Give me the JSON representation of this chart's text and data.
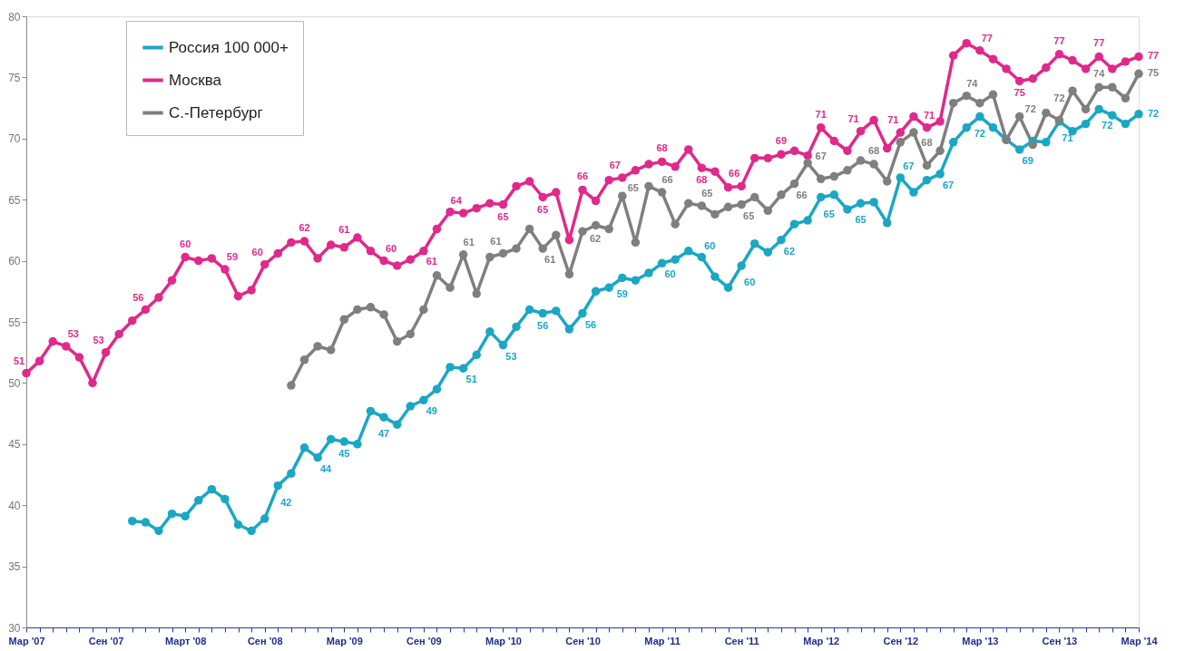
{
  "chart_data": {
    "type": "line",
    "categories": [
      "Мар '07",
      null,
      null,
      null,
      null,
      null,
      "Сен '07",
      null,
      null,
      null,
      null,
      null,
      "Март '08",
      null,
      null,
      null,
      null,
      null,
      "Сен '08",
      null,
      null,
      null,
      null,
      null,
      "Мар '09",
      null,
      null,
      null,
      null,
      null,
      "Сен '09",
      null,
      null,
      null,
      null,
      null,
      "Мар '10",
      null,
      null,
      null,
      null,
      null,
      "Сен '10",
      null,
      null,
      null,
      null,
      null,
      "Мар '11",
      null,
      null,
      null,
      null,
      null,
      "Сен '11",
      null,
      null,
      null,
      null,
      null,
      "Мар '12",
      null,
      null,
      null,
      null,
      null,
      "Сен '12",
      null,
      null,
      null,
      null,
      null,
      "Мар '13",
      null,
      null,
      null,
      null,
      null,
      "Сен '13",
      null,
      null,
      null,
      null,
      null,
      "Мар '14"
    ],
    "series": [
      {
        "name": "Россия 100 000+",
        "color": "#1aa7c4",
        "values": [
          null,
          null,
          null,
          null,
          null,
          null,
          null,
          null,
          38.7,
          38.6,
          37.9,
          39.3,
          39.1,
          40.4,
          41.3,
          40.5,
          38.4,
          37.9,
          38.9,
          41.6,
          42.6,
          44.7,
          43.9,
          45.4,
          45.2,
          45.0,
          47.7,
          47.2,
          46.6,
          48.1,
          48.6,
          49.5,
          51.3,
          51.2,
          52.3,
          54.2,
          53.1,
          54.6,
          56.0,
          55.7,
          55.9,
          54.4,
          55.7,
          57.5,
          57.8,
          58.6,
          58.4,
          59.0,
          59.8,
          60.1,
          60.8,
          60.3,
          58.7,
          57.8,
          59.6,
          61.4,
          60.7,
          61.7,
          63.0,
          63.3,
          65.2,
          65.4,
          64.2,
          64.7,
          64.8,
          63.1,
          66.8,
          65.6,
          66.6,
          67.1,
          69.7,
          70.9,
          71.8,
          70.9,
          69.9,
          69.1,
          69.8,
          69.7,
          71.4,
          70.6,
          71.2,
          72.4,
          71.9,
          71.2,
          72.0
        ],
        "value_labels": [
          null,
          null,
          null,
          null,
          null,
          null,
          null,
          null,
          null,
          null,
          null,
          null,
          null,
          null,
          null,
          null,
          null,
          null,
          null,
          "42",
          null,
          null,
          "44",
          null,
          "45",
          null,
          null,
          "47",
          null,
          null,
          "49",
          null,
          null,
          "51",
          null,
          null,
          "53",
          null,
          null,
          "56",
          null,
          null,
          "56",
          null,
          null,
          "59",
          null,
          null,
          "60",
          null,
          null,
          "60",
          null,
          null,
          "60",
          null,
          null,
          "62",
          null,
          null,
          "65",
          null,
          null,
          "65",
          null,
          null,
          "67",
          null,
          null,
          "67",
          null,
          null,
          "72",
          null,
          null,
          "69",
          null,
          null,
          "71",
          null,
          null,
          "72",
          null,
          null,
          "72"
        ]
      },
      {
        "name": "Москва",
        "color": "#e0298a",
        "values": [
          50.8,
          51.8,
          53.4,
          53.0,
          52.1,
          50.0,
          52.5,
          54.0,
          55.1,
          56.0,
          57.0,
          58.4,
          60.3,
          60.0,
          60.2,
          59.3,
          57.1,
          57.6,
          59.7,
          60.6,
          61.5,
          61.6,
          60.2,
          61.3,
          61.1,
          61.9,
          60.8,
          60.0,
          59.6,
          60.1,
          60.8,
          62.6,
          64.0,
          63.9,
          64.3,
          64.7,
          64.6,
          66.1,
          66.5,
          65.2,
          65.6,
          61.7,
          65.8,
          64.9,
          66.6,
          66.8,
          67.4,
          67.9,
          68.1,
          67.7,
          69.1,
          67.6,
          67.3,
          66.0,
          66.1,
          68.4,
          68.4,
          68.7,
          69.0,
          68.6,
          70.9,
          69.8,
          69.0,
          70.6,
          71.5,
          69.2,
          70.5,
          71.8,
          70.9,
          71.4,
          76.8,
          77.8,
          77.2,
          76.5,
          75.7,
          74.7,
          74.9,
          75.8,
          76.9,
          76.4,
          75.7,
          76.7,
          75.7,
          76.3,
          76.7
        ],
        "value_labels": [
          "51",
          null,
          null,
          "53",
          null,
          null,
          "53",
          null,
          null,
          "56",
          null,
          null,
          "60",
          null,
          null,
          "59",
          null,
          null,
          "60",
          null,
          null,
          "62",
          null,
          null,
          "61",
          null,
          null,
          "60",
          null,
          null,
          "61",
          null,
          null,
          "64",
          null,
          null,
          "65",
          null,
          null,
          "65",
          null,
          null,
          "66",
          null,
          null,
          "67",
          null,
          null,
          "68",
          null,
          null,
          "68",
          null,
          null,
          "66",
          null,
          null,
          "69",
          null,
          null,
          "71",
          null,
          null,
          "71",
          null,
          null,
          "71",
          null,
          null,
          "71",
          null,
          null,
          "77",
          null,
          null,
          "75",
          null,
          null,
          "77",
          null,
          null,
          "77",
          null,
          null,
          "77"
        ]
      },
      {
        "name": "С.-Петербург",
        "color": "#7f7f7f",
        "values": [
          null,
          null,
          null,
          null,
          null,
          null,
          null,
          null,
          null,
          null,
          null,
          null,
          null,
          null,
          null,
          null,
          null,
          null,
          null,
          null,
          49.8,
          51.9,
          53.0,
          52.7,
          55.2,
          56.0,
          56.2,
          55.6,
          53.4,
          54.0,
          56.0,
          58.8,
          57.8,
          60.5,
          57.3,
          60.3,
          60.6,
          61.0,
          62.6,
          61.0,
          62.1,
          58.9,
          62.4,
          62.9,
          62.6,
          65.3,
          61.5,
          66.1,
          65.6,
          63.0,
          64.7,
          64.5,
          63.8,
          64.4,
          64.6,
          65.2,
          64.1,
          65.4,
          66.3,
          68.0,
          66.7,
          66.9,
          67.4,
          68.2,
          67.9,
          66.5,
          69.7,
          70.5,
          67.8,
          69.0,
          72.9,
          73.5,
          72.9,
          73.6,
          69.9,
          71.8,
          69.5,
          72.1,
          71.5,
          73.9,
          72.4,
          74.2,
          74.2,
          73.3,
          75.3
        ],
        "value_labels": [
          null,
          null,
          null,
          null,
          null,
          null,
          null,
          null,
          null,
          null,
          null,
          null,
          null,
          null,
          null,
          null,
          null,
          null,
          null,
          null,
          null,
          null,
          null,
          null,
          null,
          null,
          null,
          null,
          null,
          null,
          null,
          null,
          null,
          "61",
          null,
          null,
          "61",
          null,
          null,
          "61",
          null,
          null,
          "62",
          null,
          null,
          "65",
          null,
          null,
          "66",
          null,
          null,
          "65",
          null,
          null,
          "65",
          null,
          null,
          null,
          "66",
          null,
          "67",
          null,
          null,
          null,
          "68",
          null,
          null,
          null,
          "68",
          null,
          null,
          "74",
          null,
          null,
          null,
          "72",
          null,
          null,
          "72",
          null,
          null,
          "74",
          null,
          null,
          "75"
        ]
      }
    ],
    "ylim": [
      30,
      80
    ],
    "yticks": [
      30,
      35,
      40,
      45,
      50,
      55,
      60,
      65,
      70,
      75,
      80
    ],
    "marker": "circle",
    "line_style": "solid",
    "grid": false,
    "legend": "top left"
  }
}
